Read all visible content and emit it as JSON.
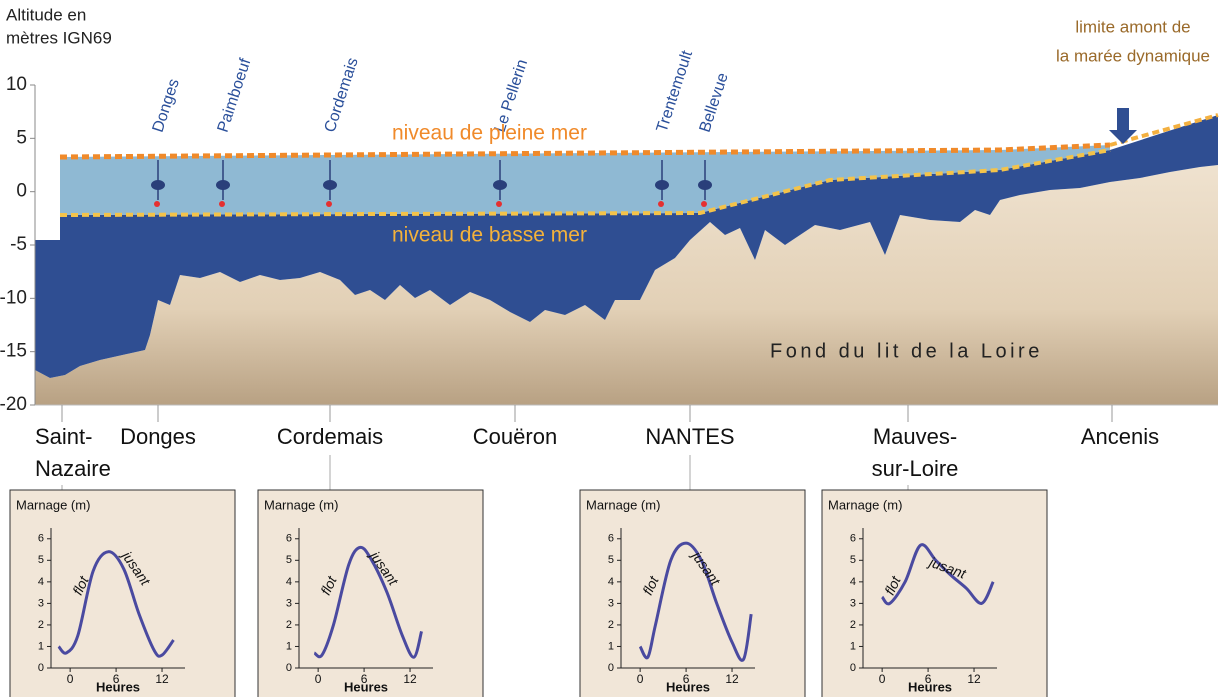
{
  "axis": {
    "title_lines": [
      "Altitude en",
      "mètres IGN69"
    ],
    "ylim": [
      -20,
      10
    ],
    "yticks": [
      10,
      5,
      0,
      -5,
      -10,
      -15,
      -20
    ]
  },
  "stations": [
    "Donges",
    "Paimboeuf",
    "Cordemais",
    "Le Pellerin",
    "Trentemoult",
    "Bellevue"
  ],
  "high_water": "niveau de pleine mer",
  "low_water": "niveau de basse mer",
  "tide_limit_lines": [
    "limite amont de",
    "la marée dynamique"
  ],
  "bed_label": "Fond du lit de la Loire",
  "places": [
    [
      "Saint-",
      "Nazaire"
    ],
    [
      "Donges"
    ],
    [
      "Cordemais"
    ],
    [
      "Couëron"
    ],
    [
      "NANTES"
    ],
    [
      "Mauves-",
      "sur-Loire"
    ],
    [
      "Ancenis"
    ]
  ],
  "insets": [
    {
      "type": "line",
      "ylabel": "Marnage (m)",
      "xlabel": "Heures",
      "rise": "flot",
      "fall": "jusant",
      "xlim": [
        -2.5,
        15
      ],
      "ylim": [
        0,
        6.5
      ],
      "xticks": [
        0,
        6,
        12
      ],
      "yticks": [
        0,
        1,
        2,
        3,
        4,
        5,
        6
      ],
      "x": [
        -1.5,
        -0.5,
        1,
        3,
        5,
        7,
        9,
        11,
        12,
        13.5
      ],
      "values": [
        1.0,
        0.7,
        1.5,
        4.5,
        5.4,
        4.6,
        2.5,
        0.8,
        0.6,
        1.3
      ]
    },
    {
      "type": "line",
      "ylabel": "Marnage (m)",
      "xlabel": "Heures",
      "rise": "flot",
      "fall": "jusant",
      "xlim": [
        -2.5,
        15
      ],
      "ylim": [
        0,
        6.5
      ],
      "xticks": [
        0,
        6,
        12
      ],
      "yticks": [
        0,
        1,
        2,
        3,
        4,
        5,
        6
      ],
      "x": [
        -0.5,
        0.5,
        2,
        4,
        5.5,
        7,
        9,
        11,
        12.5,
        13.5
      ],
      "values": [
        0.7,
        0.6,
        2.0,
        4.8,
        5.6,
        5.0,
        3.5,
        1.5,
        0.5,
        1.7
      ]
    },
    {
      "type": "line",
      "ylabel": "Marnage (m)",
      "xlabel": "Heures",
      "rise": "flot",
      "fall": "jusant",
      "xlim": [
        -2.5,
        15
      ],
      "ylim": [
        0,
        6.5
      ],
      "xticks": [
        0,
        6,
        12
      ],
      "yticks": [
        0,
        1,
        2,
        3,
        4,
        5,
        6
      ],
      "x": [
        0,
        1,
        2,
        4,
        6,
        8,
        10,
        12,
        13.5,
        14.5
      ],
      "values": [
        1.0,
        0.5,
        2.0,
        5.0,
        5.8,
        5.0,
        3.0,
        1.2,
        0.4,
        2.5
      ]
    },
    {
      "type": "line",
      "ylabel": "Marnage (m)",
      "xlabel": "Heures",
      "rise": "flot",
      "fall": "jusant",
      "xlim": [
        -2.5,
        15
      ],
      "ylim": [
        0,
        6.5
      ],
      "xticks": [
        0,
        6,
        12
      ],
      "yticks": [
        0,
        1,
        2,
        3,
        4,
        5,
        6
      ],
      "x": [
        0,
        1,
        3,
        5,
        7,
        9,
        11,
        13,
        14.5
      ],
      "values": [
        3.3,
        3.0,
        4.0,
        5.7,
        5.0,
        4.3,
        3.7,
        3.0,
        4.0
      ]
    }
  ]
}
